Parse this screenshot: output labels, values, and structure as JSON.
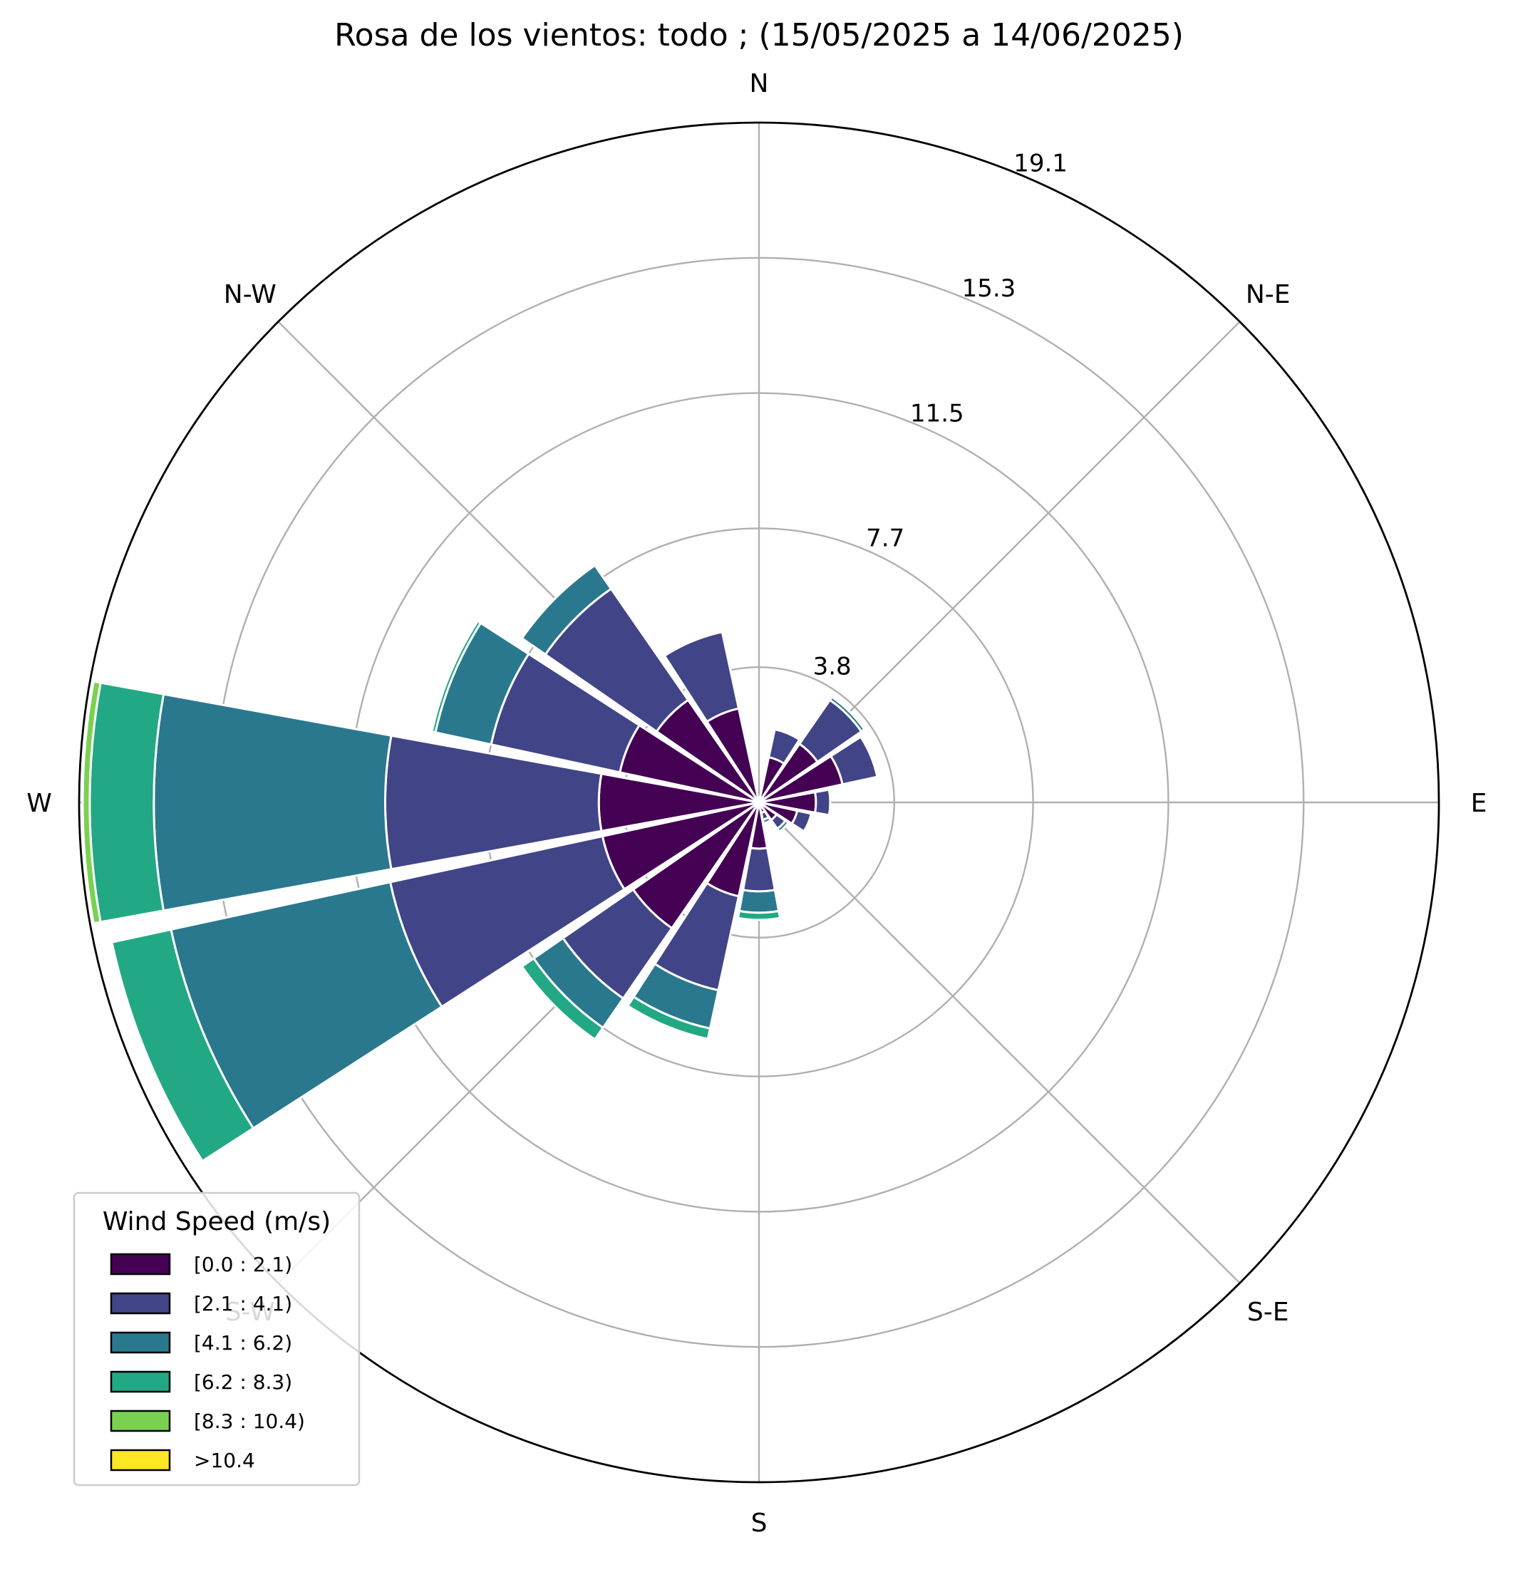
{
  "chart_data": {
    "type": "windrose",
    "title": "Rosa de los vientos: todo ; (15/05/2025 a 14/06/2025)",
    "direction_labels": [
      "N",
      "N-E",
      "E",
      "S-E",
      "S",
      "S-W",
      "W",
      "N-W"
    ],
    "radial_ticks": [
      "3.8",
      "7.7",
      "11.5",
      "15.3",
      "19.1"
    ],
    "radial_tick_values": [
      3.8,
      7.7,
      11.5,
      15.3,
      19.1
    ],
    "rmax": 19.1,
    "sector_directions_deg": [
      0,
      22.5,
      45,
      67.5,
      90,
      112.5,
      135,
      157.5,
      180,
      202.5,
      225,
      247.5,
      270,
      292.5,
      315,
      337.5
    ],
    "legend": {
      "title": "Wind Speed (m/s)",
      "placement": "lower-left"
    },
    "series": [
      {
        "name": "[0.0 : 2.1)",
        "color": "#440154",
        "values": [
          0.0,
          1.3,
          2.0,
          2.4,
          1.6,
          1.1,
          0.6,
          0.3,
          1.3,
          2.7,
          4.3,
          4.5,
          4.5,
          4.0,
          3.5,
          2.7
        ]
      },
      {
        "name": "[2.1 : 4.1)",
        "color": "#414487",
        "values": [
          0.0,
          0.8,
          1.5,
          1.0,
          0.4,
          0.4,
          0.3,
          0.2,
          1.2,
          2.7,
          2.4,
          6.1,
          6.0,
          3.7,
          3.8,
          2.2
        ]
      },
      {
        "name": "[4.1 : 6.2)",
        "color": "#2a788e",
        "values": [
          0.0,
          0.0,
          0.1,
          0.0,
          0.0,
          0.0,
          0.1,
          0.1,
          0.6,
          1.1,
          1.0,
          6.3,
          6.5,
          1.6,
          0.8,
          0.0
        ]
      },
      {
        "name": "[6.2 : 8.3)",
        "color": "#22a884",
        "values": [
          0.0,
          0.0,
          0.0,
          0.0,
          0.0,
          0.0,
          0.0,
          0.0,
          0.2,
          0.3,
          0.4,
          1.7,
          1.8,
          0.1,
          0.0,
          0.0
        ]
      },
      {
        "name": "[8.3 : 10.4)",
        "color": "#7ad151",
        "values": [
          0.0,
          0.0,
          0.0,
          0.0,
          0.0,
          0.0,
          0.0,
          0.0,
          0.0,
          0.0,
          0.0,
          0.0,
          0.2,
          0.0,
          0.0,
          0.0
        ]
      },
      {
        "name": ">10.4",
        "color": "#fde725",
        "values": [
          0.0,
          0.0,
          0.0,
          0.0,
          0.0,
          0.0,
          0.0,
          0.0,
          0.0,
          0.0,
          0.0,
          0.0,
          0.0,
          0.0,
          0.0,
          0.0
        ]
      }
    ],
    "grid": true
  }
}
